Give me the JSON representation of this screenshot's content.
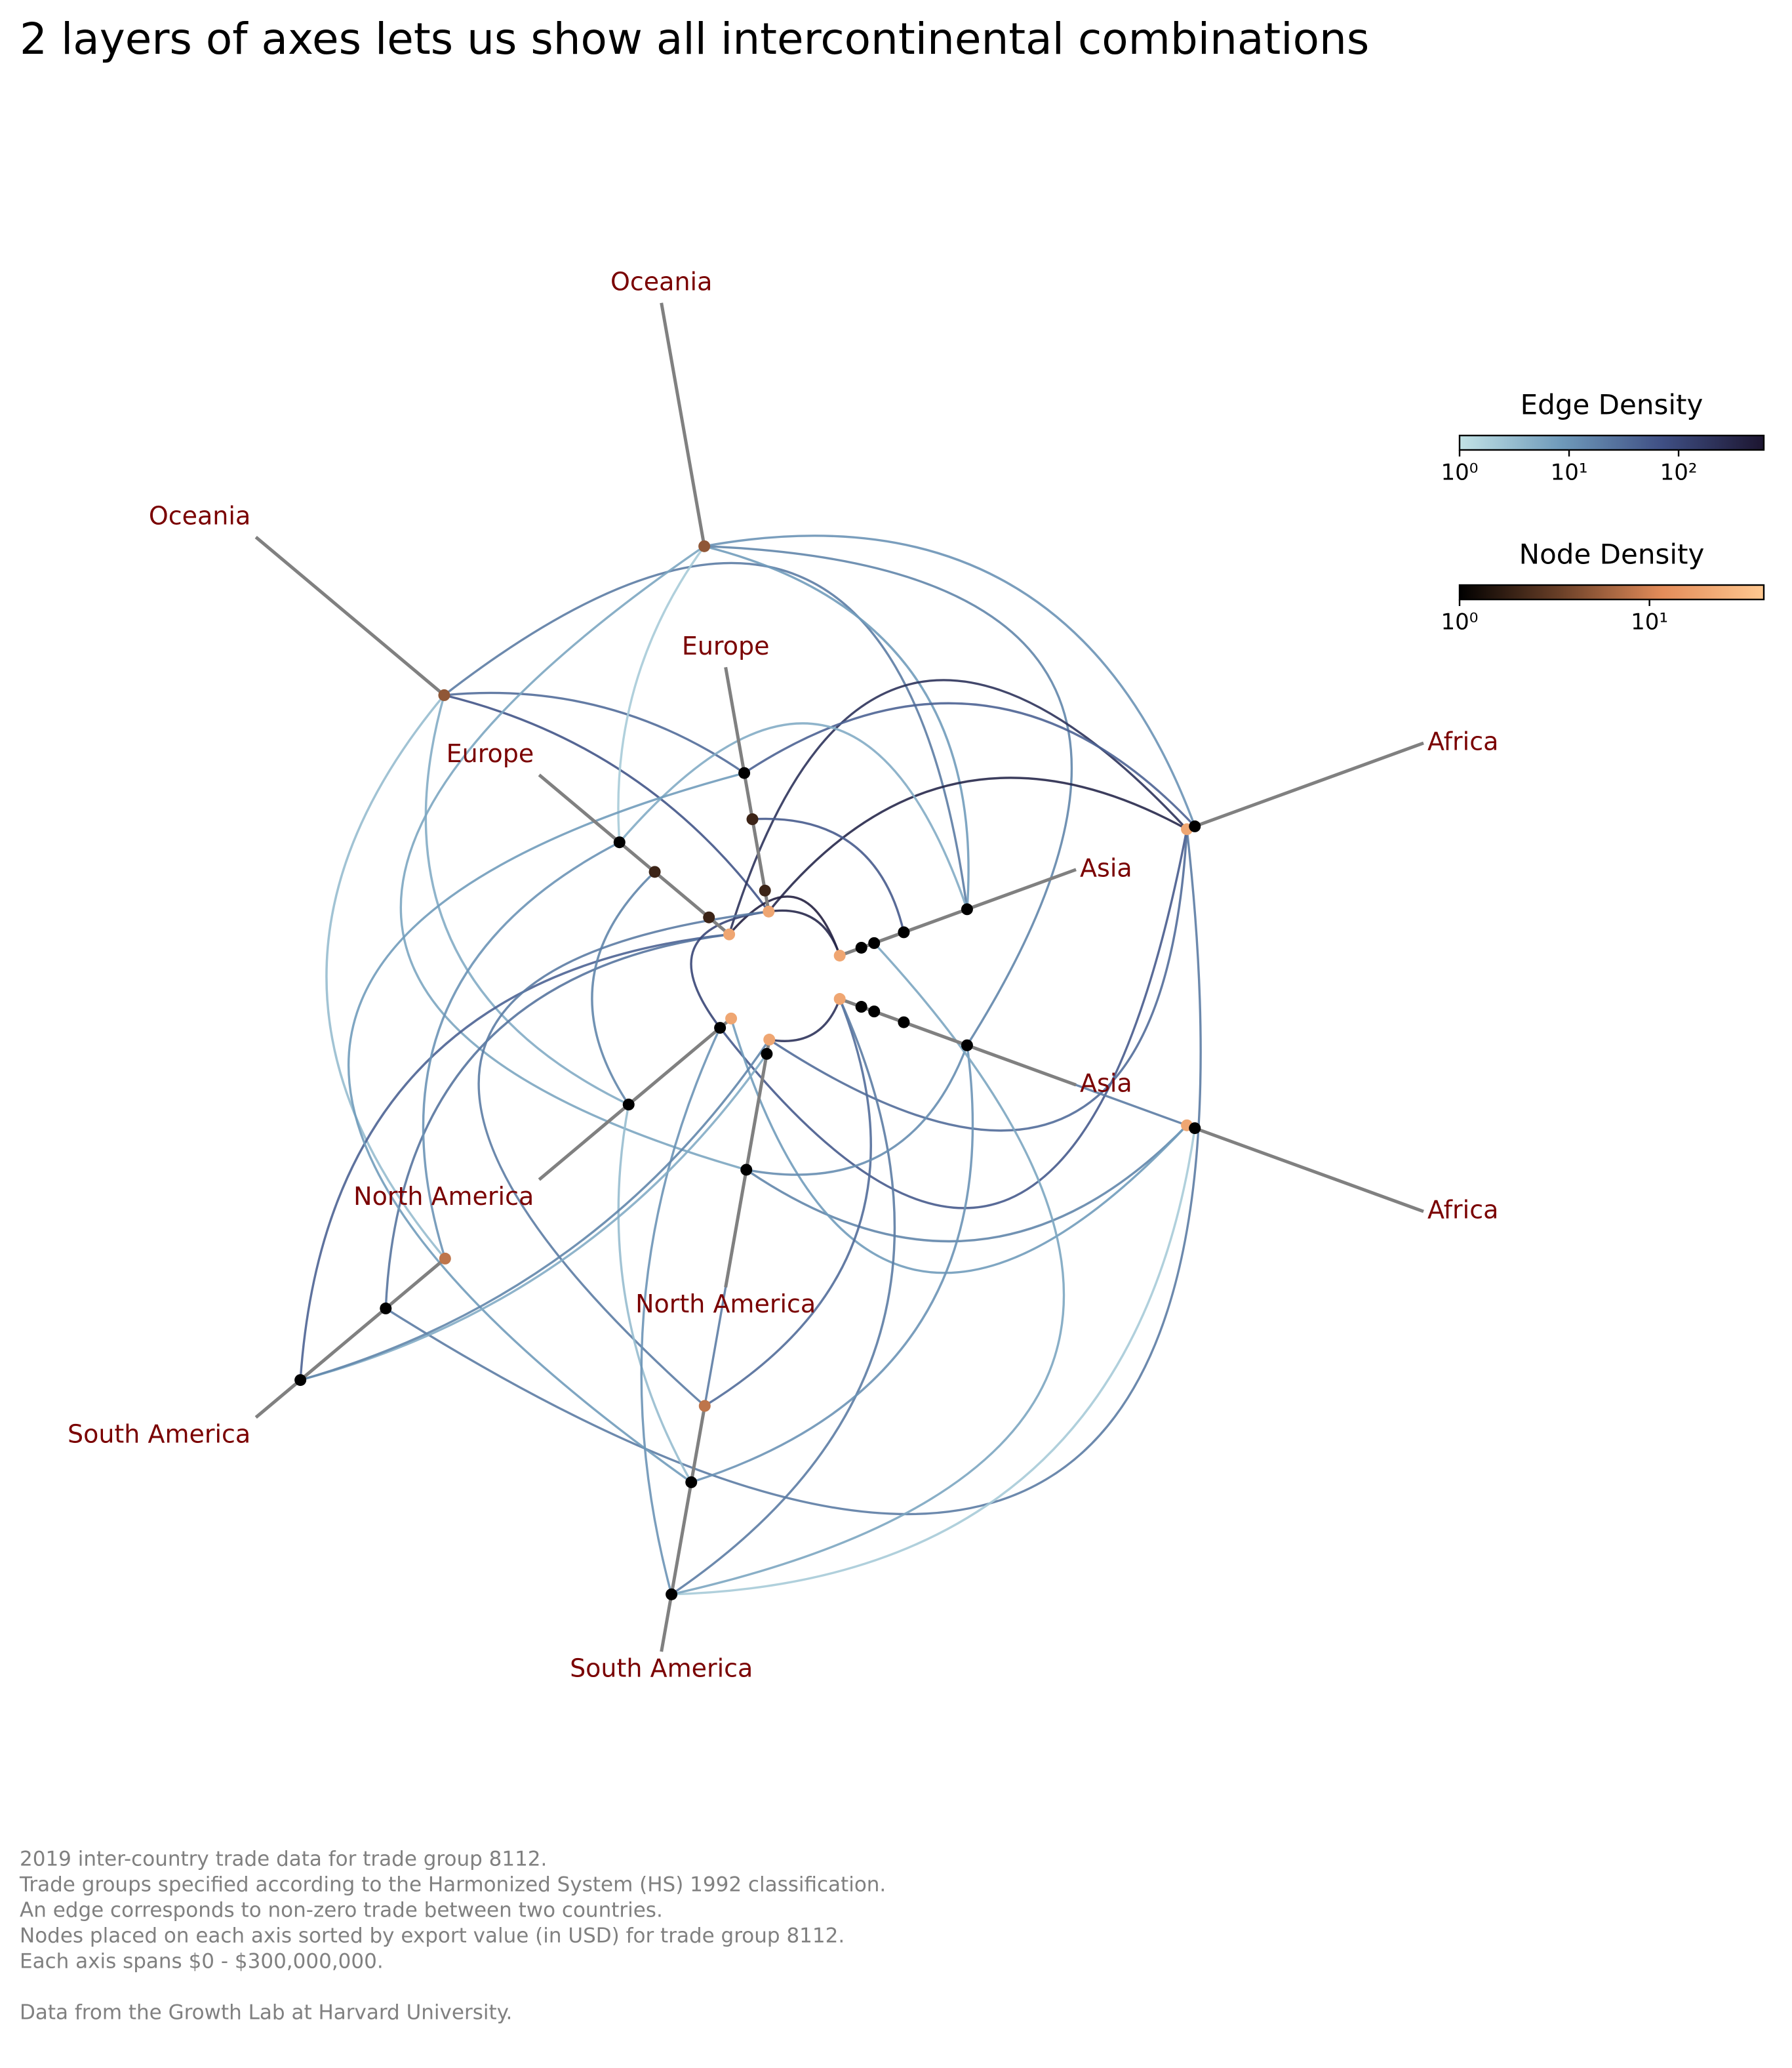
{
  "chart_data": {
    "type": "hive",
    "title": "2 layers of axes lets us show all intercontinental combinations",
    "axis_range": [
      0,
      300000000
    ],
    "axes": [
      {
        "label": "Oceania",
        "nodes": [
          {
            "value": 96000000,
            "density": 5
          }
        ]
      },
      {
        "label": "Oceania",
        "nodes": [
          {
            "value": 97000000,
            "density": 5
          }
        ]
      },
      {
        "label": "Europe",
        "nodes": [
          {
            "value": 174000000,
            "density": 1
          },
          {
            "value": 119000000,
            "density": 2
          },
          {
            "value": 34000000,
            "density": 2
          },
          {
            "value": 9000000,
            "density": 20
          }
        ]
      },
      {
        "label": "Europe",
        "nodes": [
          {
            "value": 177000000,
            "density": 1
          },
          {
            "value": 123000000,
            "density": 2
          },
          {
            "value": 40000000,
            "density": 2
          },
          {
            "value": 9000000,
            "density": 20
          }
        ]
      },
      {
        "label": "Asia",
        "nodes": [
          {
            "value": 164000000,
            "density": 1
          },
          {
            "value": 85000000,
            "density": 1
          },
          {
            "value": 48000000,
            "density": 1
          },
          {
            "value": 32000000,
            "density": 1
          },
          {
            "value": 5000000,
            "density": 20
          }
        ]
      },
      {
        "label": "Asia",
        "nodes": [
          {
            "value": 164000000,
            "density": 1
          },
          {
            "value": 85000000,
            "density": 1
          },
          {
            "value": 48000000,
            "density": 1
          },
          {
            "value": 32000000,
            "density": 1
          },
          {
            "value": 5000000,
            "density": 20
          }
        ]
      },
      {
        "label": "Africa",
        "nodes": [
          {
            "value": 92000000,
            "density": 20
          },
          {
            "value": 99000000,
            "density": 1
          }
        ]
      },
      {
        "label": "Africa",
        "nodes": [
          {
            "value": 92000000,
            "density": 20
          },
          {
            "value": 99000000,
            "density": 1
          }
        ]
      },
      {
        "label": "North America",
        "nodes": [
          {
            "value": 23000000,
            "density": 1
          },
          {
            "value": 6000000,
            "density": 20
          },
          {
            "value": 163000000,
            "density": 1
          }
        ]
      },
      {
        "label": "North America",
        "nodes": [
          {
            "value": 5000000,
            "density": 20
          },
          {
            "value": 22000000,
            "density": 1
          },
          {
            "value": 160000000,
            "density": 1
          }
        ]
      },
      {
        "label": "South America",
        "nodes": [
          {
            "value": 96000000,
            "density": 8
          },
          {
            "value": 160000000,
            "density": 1
          },
          {
            "value": 252000000,
            "density": 1
          }
        ]
      },
      {
        "label": "South America",
        "nodes": [
          {
            "value": 94000000,
            "density": 8
          },
          {
            "value": 158000000,
            "density": 1
          },
          {
            "value": 252000000,
            "density": 1
          }
        ]
      }
    ],
    "edges": [
      {
        "from": [
          1,
          0
        ],
        "to": [
          2,
          0
        ],
        "density": 30
      },
      {
        "from": [
          1,
          0
        ],
        "to": [
          2,
          3
        ],
        "density": 60
      },
      {
        "from": [
          1,
          0
        ],
        "to": [
          4,
          0
        ],
        "density": 20
      },
      {
        "from": [
          1,
          0
        ],
        "to": [
          8,
          2
        ],
        "density": 5
      },
      {
        "from": [
          1,
          0
        ],
        "to": [
          10,
          0
        ],
        "density": 3
      },
      {
        "from": [
          0,
          0
        ],
        "to": [
          6,
          1
        ],
        "density": 10
      },
      {
        "from": [
          0,
          0
        ],
        "to": [
          4,
          0
        ],
        "density": 8
      },
      {
        "from": [
          0,
          0
        ],
        "to": [
          5,
          0
        ],
        "density": 15
      },
      {
        "from": [
          0,
          0
        ],
        "to": [
          9,
          2
        ],
        "density": 6
      },
      {
        "from": [
          0,
          0
        ],
        "to": [
          3,
          0
        ],
        "density": 2
      },
      {
        "from": [
          6,
          0
        ],
        "to": [
          2,
          3
        ],
        "density": 300
      },
      {
        "from": [
          6,
          0
        ],
        "to": [
          3,
          3
        ],
        "density": 200
      },
      {
        "from": [
          6,
          1
        ],
        "to": [
          2,
          0
        ],
        "density": 40
      },
      {
        "from": [
          6,
          0
        ],
        "to": [
          10,
          1
        ],
        "density": 20
      },
      {
        "from": [
          6,
          0
        ],
        "to": [
          8,
          0
        ],
        "density": 50
      },
      {
        "from": [
          6,
          0
        ],
        "to": [
          9,
          0
        ],
        "density": 30
      },
      {
        "from": [
          7,
          0
        ],
        "to": [
          9,
          2
        ],
        "density": 15
      },
      {
        "from": [
          7,
          1
        ],
        "to": [
          11,
          2
        ],
        "density": 2
      },
      {
        "from": [
          7,
          0
        ],
        "to": [
          5,
          4
        ],
        "density": 20
      },
      {
        "from": [
          7,
          0
        ],
        "to": [
          8,
          1
        ],
        "density": 8
      },
      {
        "from": [
          4,
          4
        ],
        "to": [
          3,
          3
        ],
        "density": 400
      },
      {
        "from": [
          4,
          4
        ],
        "to": [
          2,
          3
        ],
        "density": 300
      },
      {
        "from": [
          5,
          4
        ],
        "to": [
          9,
          0
        ],
        "density": 200
      },
      {
        "from": [
          5,
          4
        ],
        "to": [
          11,
          0
        ],
        "density": 30
      },
      {
        "from": [
          5,
          4
        ],
        "to": [
          11,
          2
        ],
        "density": 20
      },
      {
        "from": [
          5,
          0
        ],
        "to": [
          11,
          1
        ],
        "density": 10
      },
      {
        "from": [
          4,
          0
        ],
        "to": [
          3,
          0
        ],
        "density": 5
      },
      {
        "from": [
          5,
          0
        ],
        "to": [
          9,
          2
        ],
        "density": 12
      },
      {
        "from": [
          4,
          1
        ],
        "to": [
          2,
          1
        ],
        "density": 50
      },
      {
        "from": [
          3,
          3
        ],
        "to": [
          10,
          2
        ],
        "density": 40
      },
      {
        "from": [
          3,
          3
        ],
        "to": [
          10,
          1
        ],
        "density": 25
      },
      {
        "from": [
          3,
          0
        ],
        "to": [
          10,
          0
        ],
        "density": 10
      },
      {
        "from": [
          2,
          3
        ],
        "to": [
          8,
          0
        ],
        "density": 100
      },
      {
        "from": [
          2,
          0
        ],
        "to": [
          11,
          1
        ],
        "density": 8
      },
      {
        "from": [
          3,
          1
        ],
        "to": [
          8,
          2
        ],
        "density": 15
      },
      {
        "from": [
          2,
          3
        ],
        "to": [
          11,
          0
        ],
        "density": 20
      },
      {
        "from": [
          8,
          2
        ],
        "to": [
          11,
          1
        ],
        "density": 3
      },
      {
        "from": [
          9,
          2
        ],
        "to": [
          11,
          0
        ],
        "density": 20
      },
      {
        "from": [
          8,
          0
        ],
        "to": [
          11,
          2
        ],
        "density": 10
      },
      {
        "from": [
          9,
          1
        ],
        "to": [
          10,
          2
        ],
        "density": 5
      },
      {
        "from": [
          10,
          2
        ],
        "to": [
          9,
          0
        ],
        "density": 15
      },
      {
        "from": [
          11,
          2
        ],
        "to": [
          4,
          2
        ],
        "density": 6
      }
    ],
    "edge_colorbar": {
      "title": "Edge Density",
      "lim": [
        1,
        600
      ],
      "ticks": [
        {
          "value": 1,
          "label": "10⁰"
        },
        {
          "value": 10,
          "label": "10¹"
        },
        {
          "value": 100,
          "label": "10²"
        }
      ],
      "colormap": [
        "#c2e3e6",
        "#6f9aba",
        "#3f4f84",
        "#1c1530"
      ]
    },
    "node_colorbar": {
      "title": "Node Density",
      "lim": [
        1,
        40
      ],
      "ticks": [
        {
          "value": 1,
          "label": "10⁰"
        },
        {
          "value": 10,
          "label": "10¹"
        }
      ],
      "colormap": [
        "#000000",
        "#6b4028",
        "#e38c5a",
        "#ffc890"
      ]
    },
    "notes": [
      "2019 inter-country trade data for trade group 8112.",
      "Trade groups specified according to the Harmonized System (HS) 1992 classification.",
      "An edge corresponds to non-zero trade between two countries.",
      "Nodes placed on each axis sorted by export value (in USD) for trade group 8112.",
      "Each axis spans $0 - $300,000,000."
    ],
    "source": "Data from the Growth Lab at Harvard University."
  }
}
